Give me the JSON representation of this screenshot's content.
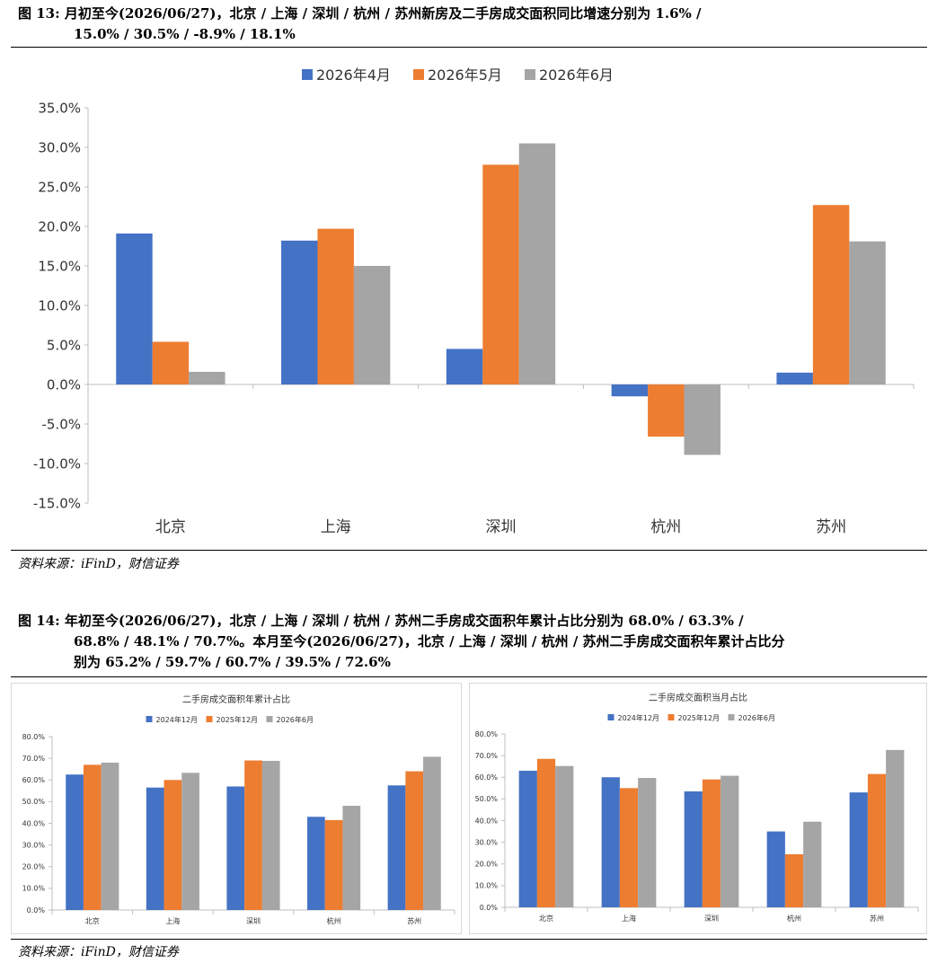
{
  "fig13": {
    "title_line1": "图 13: 月初至今(2026/06/27)，北京 / 上海 / 深圳 / 杭州 / 苏州新房及二手房成交面积同比增速分别为 1.6% /",
    "title_line2": "15.0% / 30.5% / -8.9% / 18.1%",
    "source": "资料来源：iFinD，财信证券"
  },
  "fig14": {
    "title_line1": "图 14: 年初至今(2026/06/27)，北京 / 上海 / 深圳 / 杭州 / 苏州二手房成交面积年累计占比分别为 68.0% / 63.3% /",
    "title_line2": "68.8% / 48.1% / 70.7%。本月至今(2026/06/27)，北京 / 上海 / 深圳 / 杭州 / 苏州二手房成交面积年累计占比分",
    "title_line3": "别为 65.2% / 59.7% / 60.7% / 39.5% / 72.6%",
    "source": "资料来源：iFinD，财信证券"
  },
  "colors": {
    "blue": "#4472C4",
    "orange": "#ED7D31",
    "gray": "#A5A5A5"
  },
  "chart_data": [
    {
      "type": "bar",
      "title": "",
      "categories": [
        "北京",
        "上海",
        "深圳",
        "杭州",
        "苏州"
      ],
      "series": [
        {
          "name": "2026年4月",
          "values": [
            19.1,
            18.2,
            4.5,
            -1.5,
            1.5
          ]
        },
        {
          "name": "2026年5月",
          "values": [
            5.4,
            19.7,
            27.8,
            -6.6,
            22.7
          ]
        },
        {
          "name": "2026年6月",
          "values": [
            1.6,
            15.0,
            30.5,
            -8.9,
            18.1
          ]
        }
      ],
      "ylim": [
        -15,
        35
      ],
      "yticks": [
        "-15.0%",
        "-10.0%",
        "-5.0%",
        "0.0%",
        "5.0%",
        "10.0%",
        "15.0%",
        "20.0%",
        "25.0%",
        "30.0%",
        "35.0%"
      ],
      "legend": "top-center",
      "grid": false
    },
    {
      "type": "bar",
      "title": "二手房成交面积年累计占比",
      "categories": [
        "北京",
        "上海",
        "深圳",
        "杭州",
        "苏州"
      ],
      "series": [
        {
          "name": "2024年12月",
          "values": [
            62.5,
            56.5,
            57.0,
            43.0,
            57.5
          ]
        },
        {
          "name": "2025年12月",
          "values": [
            67.0,
            60.0,
            69.0,
            41.5,
            64.0
          ]
        },
        {
          "name": "2026年6月",
          "values": [
            68.0,
            63.3,
            68.8,
            48.1,
            70.7
          ]
        }
      ],
      "ylim": [
        0,
        80
      ],
      "yticks": [
        "0.0%",
        "10.0%",
        "20.0%",
        "30.0%",
        "40.0%",
        "50.0%",
        "60.0%",
        "70.0%",
        "80.0%"
      ],
      "legend": "top-center",
      "grid": false
    },
    {
      "type": "bar",
      "title": "二手房成交面积当月占比",
      "categories": [
        "北京",
        "上海",
        "深圳",
        "杭州",
        "苏州"
      ],
      "series": [
        {
          "name": "2024年12月",
          "values": [
            63.0,
            60.0,
            53.5,
            35.0,
            53.0
          ]
        },
        {
          "name": "2025年12月",
          "values": [
            68.5,
            55.0,
            59.0,
            24.5,
            61.5
          ]
        },
        {
          "name": "2026年6月",
          "values": [
            65.2,
            59.7,
            60.7,
            39.5,
            72.6
          ]
        }
      ],
      "ylim": [
        0,
        80
      ],
      "yticks": [
        "0.0%",
        "10.0%",
        "20.0%",
        "30.0%",
        "40.0%",
        "50.0%",
        "60.0%",
        "70.0%",
        "80.0%"
      ],
      "legend": "top-center",
      "grid": false
    }
  ]
}
